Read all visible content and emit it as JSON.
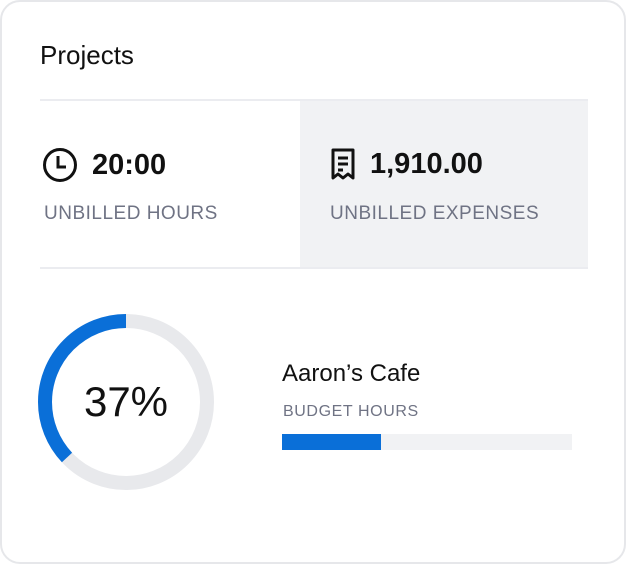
{
  "title": "Projects",
  "stats": [
    {
      "icon": "clock-icon",
      "value": "20:00",
      "label": "UNBILLED HOURS"
    },
    {
      "icon": "receipt-icon",
      "value": "1,910.00",
      "label": "UNBILLED EXPENSES"
    }
  ],
  "project": {
    "percent_label": "37%",
    "percent": 37,
    "name": "Aaron’s Cafe",
    "budget_label": "BUDGET HOURS",
    "budget_progress": 34
  },
  "colors": {
    "accent": "#0a6fd8",
    "track": "#e8e9ec"
  }
}
